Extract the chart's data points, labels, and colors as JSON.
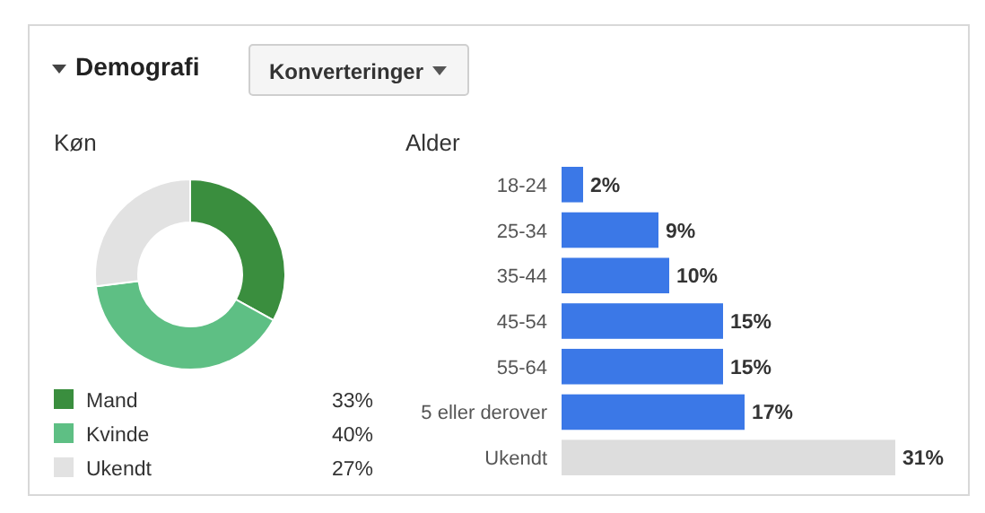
{
  "chart_data": [
    {
      "type": "other",
      "title": "Demografi",
      "annotations": [
        "Konverteringer"
      ]
    },
    {
      "type": "donut",
      "title": "Køn",
      "categories": [
        "Mand",
        "Kvinde",
        "Ukendt"
      ],
      "values": [
        33,
        40,
        27
      ],
      "colors": [
        "#3a8e3e",
        "#5ebf84",
        "#e2e2e2"
      ],
      "value_labels": [
        "33%",
        "40%",
        "27%"
      ],
      "legend": "bottom"
    },
    {
      "type": "bar",
      "orientation": "horizontal",
      "title": "Alder",
      "categories": [
        "18-24",
        "25-34",
        "35-44",
        "45-54",
        "55-64",
        "5 eller derover",
        "Ukendt"
      ],
      "values": [
        2,
        9,
        10,
        15,
        15,
        17,
        31
      ],
      "colors": [
        "#3b78e7",
        "#3b78e7",
        "#3b78e7",
        "#3b78e7",
        "#3b78e7",
        "#3b78e7",
        "#dddddd"
      ],
      "value_labels": [
        "2%",
        "9%",
        "10%",
        "15%",
        "15%",
        "17%",
        "31%"
      ]
    }
  ]
}
